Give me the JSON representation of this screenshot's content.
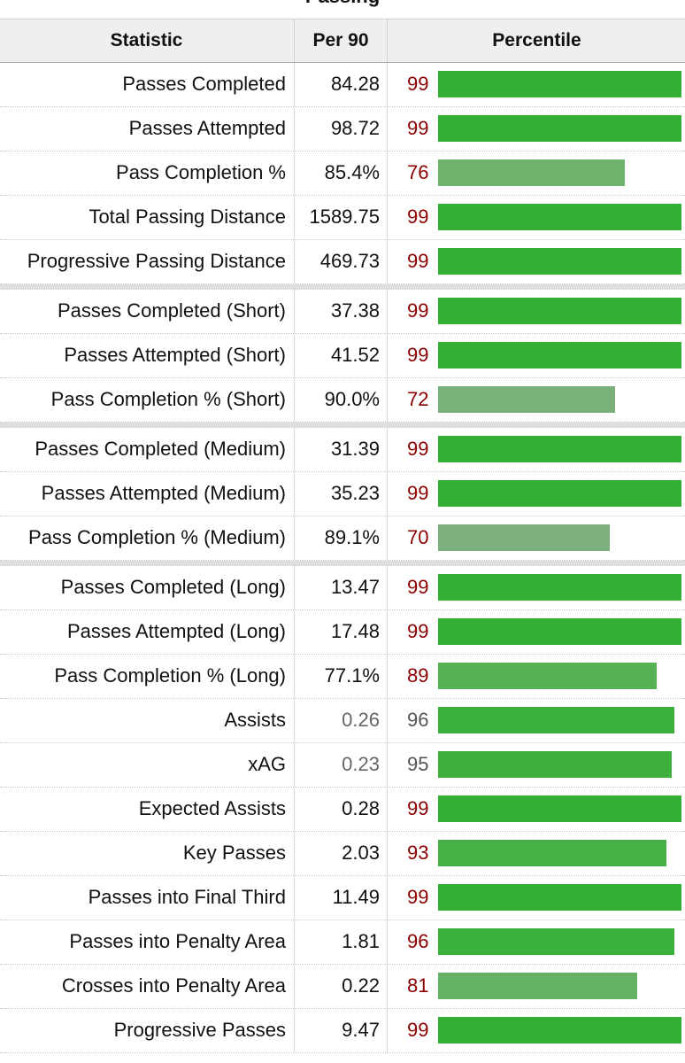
{
  "table": {
    "caption": "Passing",
    "headers": {
      "statistic": "Statistic",
      "per90": "Per 90",
      "percentile": "Percentile"
    },
    "rows": [
      {
        "stat": "Passes Completed",
        "per90": "84.28",
        "pct": 99,
        "color": "#33b033"
      },
      {
        "stat": "Passes Attempted",
        "per90": "98.72",
        "pct": 99,
        "color": "#33b033"
      },
      {
        "stat": "Pass Completion %",
        "per90": "85.4%",
        "pct": 76,
        "color": "#6db26d"
      },
      {
        "stat": "Total Passing Distance",
        "per90": "1589.75",
        "pct": 99,
        "color": "#33b033"
      },
      {
        "stat": "Progressive Passing Distance",
        "per90": "469.73",
        "pct": 99,
        "color": "#33b033"
      },
      {
        "stat": "Passes Completed (Short)",
        "per90": "37.38",
        "pct": 99,
        "color": "#33b033",
        "group_start": true
      },
      {
        "stat": "Passes Attempted (Short)",
        "per90": "41.52",
        "pct": 99,
        "color": "#33b033"
      },
      {
        "stat": "Pass Completion % (Short)",
        "per90": "90.0%",
        "pct": 72,
        "color": "#7ab17a"
      },
      {
        "stat": "Passes Completed (Medium)",
        "per90": "31.39",
        "pct": 99,
        "color": "#33b033",
        "group_start": true
      },
      {
        "stat": "Passes Attempted (Medium)",
        "per90": "35.23",
        "pct": 99,
        "color": "#33b033"
      },
      {
        "stat": "Pass Completion % (Medium)",
        "per90": "89.1%",
        "pct": 70,
        "color": "#7cb07c"
      },
      {
        "stat": "Passes Completed (Long)",
        "per90": "13.47",
        "pct": 99,
        "color": "#33b033",
        "group_start": true
      },
      {
        "stat": "Passes Attempted (Long)",
        "per90": "17.48",
        "pct": 99,
        "color": "#33b033"
      },
      {
        "stat": "Pass Completion % (Long)",
        "per90": "77.1%",
        "pct": 89,
        "color": "#55b255"
      },
      {
        "stat": "Assists",
        "per90": "0.26",
        "pct": 96,
        "color": "#3bb03b",
        "muted": true
      },
      {
        "stat": "xAG",
        "per90": "0.23",
        "pct": 95,
        "color": "#3db03d",
        "muted": true
      },
      {
        "stat": "Expected Assists",
        "per90": "0.28",
        "pct": 99,
        "color": "#33b033"
      },
      {
        "stat": "Key Passes",
        "per90": "2.03",
        "pct": 93,
        "color": "#45b045"
      },
      {
        "stat": "Passes into Final Third",
        "per90": "11.49",
        "pct": 99,
        "color": "#33b033"
      },
      {
        "stat": "Passes into Penalty Area",
        "per90": "1.81",
        "pct": 96,
        "color": "#3bb03b"
      },
      {
        "stat": "Crosses into Penalty Area",
        "per90": "0.22",
        "pct": 81,
        "color": "#64b264"
      },
      {
        "stat": "Progressive Passes",
        "per90": "9.47",
        "pct": 99,
        "color": "#33b033"
      }
    ]
  }
}
